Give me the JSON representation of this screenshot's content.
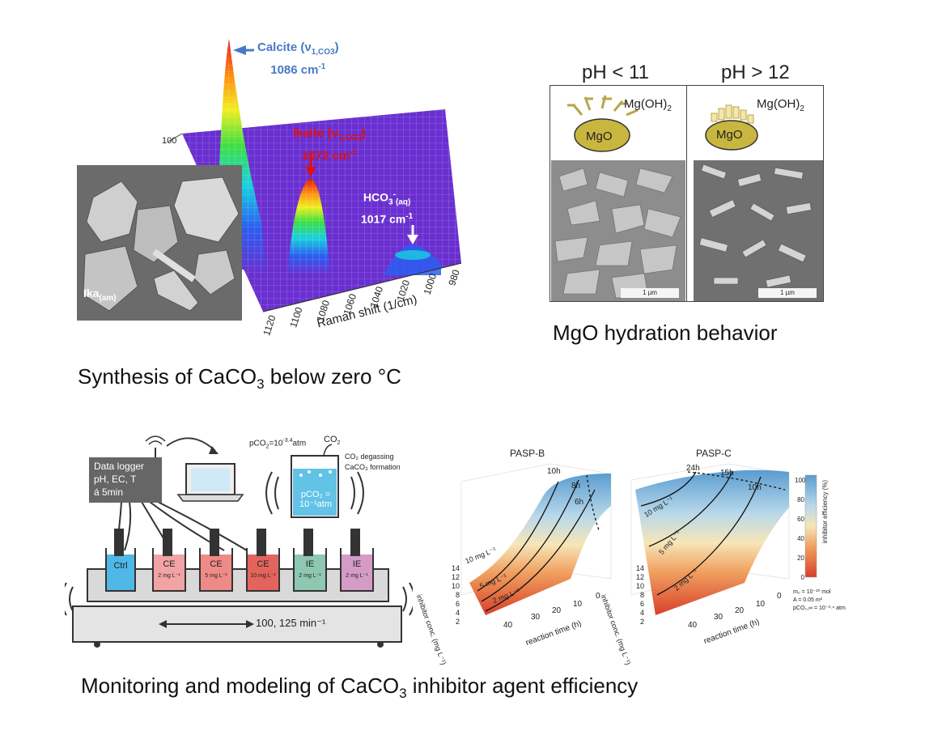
{
  "panel1": {
    "caption_pre": "Synthesis of CaCO",
    "caption_sub": "3",
    "caption_post": " below zero °C",
    "sem_label": "Ika",
    "sem_label_sub": "(am)",
    "calcite_label": "Calcite (ν",
    "calcite_sub": "1,CO3",
    "calcite_close": ")",
    "calcite_shift": "1086 cm",
    "calcite_sup": "-1",
    "ikaite_label": "Ikaite (ν",
    "ikaite_sub": "1,CO3",
    "ikaite_close": ")",
    "ikaite_shift": "1072 cm",
    "ikaite_sup": "-1",
    "hco3_label": "HCO",
    "hco3_sub": "3",
    "hco3_sup": "-",
    "hco3_sub2": "(aq)",
    "hco3_shift": "1017 cm",
    "hco3_sup2": "-1",
    "y_tick": "100",
    "x_label": "Raman shift (1/cm)",
    "x_ticks": [
      "1120",
      "1100",
      "1080",
      "1060",
      "1040",
      "1020",
      "1000",
      "980"
    ],
    "colors": {
      "calcite": "#4a78c8",
      "ikaite": "#e01010",
      "surface": "#6a2fd0"
    }
  },
  "panel2": {
    "caption": "MgO hydration behavior",
    "left_title": "pH < 11",
    "right_title": "pH > 12",
    "particle_label": "MgO",
    "mgoh2_pre": "Mg(OH)",
    "mgoh2_sub": "2",
    "scale_label": "1 µm"
  },
  "panel3": {
    "caption_pre": "Monitoring and modeling of CaCO",
    "caption_sub": "3",
    "caption_post": " inhibitor agent efficiency",
    "logger_lines": [
      "Data logger",
      "pH, EC, T",
      "á 5min"
    ],
    "pco2_top": "pCO",
    "pco2_top_sub": "2",
    "pco2_top_rest": "=10",
    "pco2_top_sup": "-3.4",
    "pco2_top_unit": "atm",
    "co2_out": "CO",
    "co2_out_sub": "2",
    "legend_degassing": "CO₂ degassing",
    "legend_formation": "CaCO₃ formation",
    "inner_pco2_lines": [
      "pCO₂ =",
      "10⁻¹atm"
    ],
    "beakers": [
      {
        "name": "Ctrl",
        "dose": "",
        "color": "#4fb8e6"
      },
      {
        "name": "CE",
        "dose": "2 mg L⁻¹",
        "color": "#f2a3a3"
      },
      {
        "name": "CE",
        "dose": "5 mg L⁻¹",
        "color": "#ee8a87"
      },
      {
        "name": "CE",
        "dose": "10 mg L⁻¹",
        "color": "#e2645c"
      },
      {
        "name": "IE",
        "dose": "2 mg L⁻¹",
        "color": "#8ec7b2"
      },
      {
        "name": "IE",
        "dose": "2 mg L⁻¹",
        "color": "#d49bc6"
      }
    ],
    "shaker_speed": "100, 125 min⁻¹",
    "chart_left_title": "PASP-B",
    "chart_right_title": "PASP-C",
    "left_time_labels": [
      "10h",
      "8h",
      "6h"
    ],
    "right_time_labels": [
      "24h",
      "15h",
      "10h"
    ],
    "left_conc_labels": [
      "10 mg L⁻¹",
      "5 mg L⁻¹",
      "2 mg L⁻¹"
    ],
    "right_conc_labels": [
      "10 mg L⁻¹",
      "5 mg L⁻¹",
      "2 mg L⁻¹"
    ],
    "axis_conc_label": "inhibitor conc. (mg L⁻¹)",
    "axis_time_label": "reaction time (h)",
    "conc_ticks": [
      "14",
      "12",
      "10",
      "8",
      "6",
      "4",
      "2"
    ],
    "time_ticks": [
      "40",
      "30",
      "20",
      "10",
      "0"
    ],
    "colorbar_label": "inhibitor efficiency (%)",
    "colorbar_ticks": [
      "100",
      "80",
      "60",
      "40",
      "20",
      "0"
    ],
    "params": [
      "m₀ = 10⁻¹⁰ mol",
      "A = 0.05 m²",
      "pCO₂,∞ = 10⁻³·⁴ atm"
    ]
  }
}
